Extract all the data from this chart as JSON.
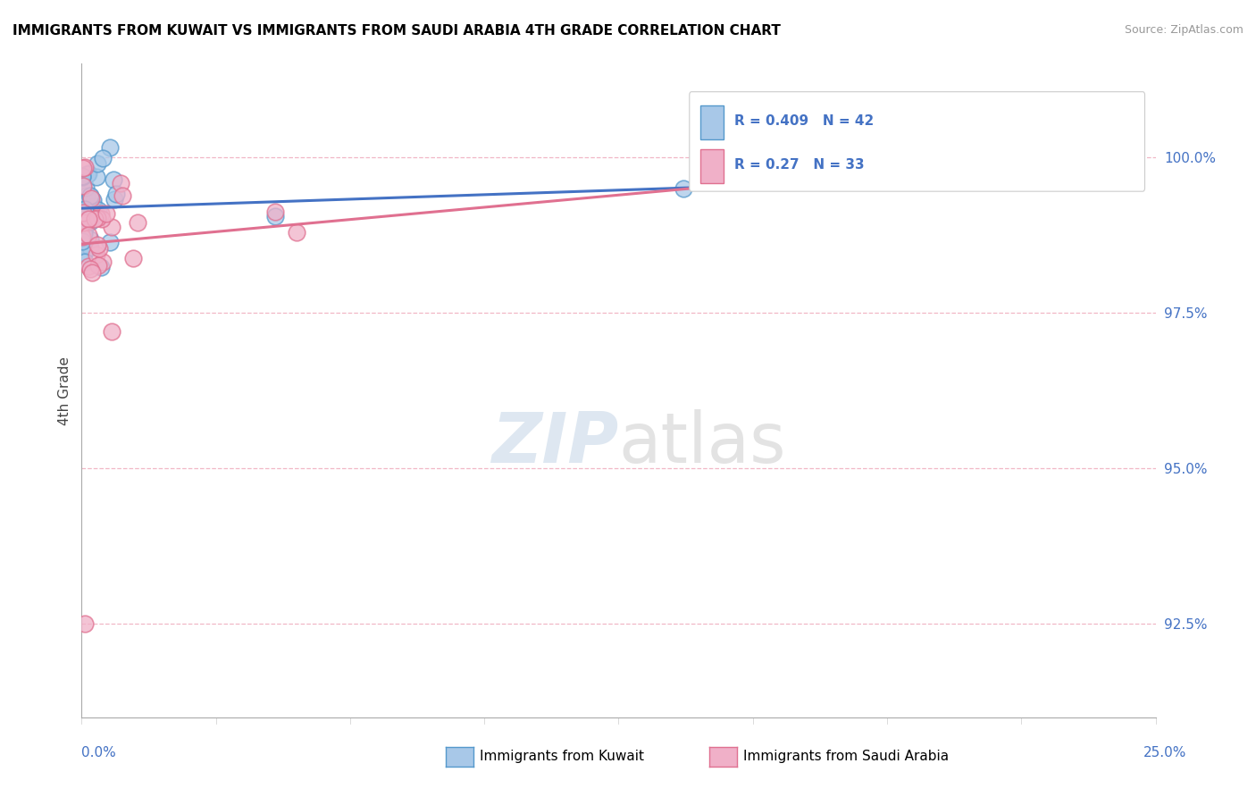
{
  "title": "IMMIGRANTS FROM KUWAIT VS IMMIGRANTS FROM SAUDI ARABIA 4TH GRADE CORRELATION CHART",
  "source": "Source: ZipAtlas.com",
  "ylabel": "4th Grade",
  "yticks": [
    92.5,
    95.0,
    97.5,
    100.0
  ],
  "ytick_labels": [
    "92.5%",
    "95.0%",
    "97.5%",
    "100.0%"
  ],
  "xlim": [
    0.0,
    25.0
  ],
  "ylim": [
    91.0,
    101.5
  ],
  "kuwait_R": 0.409,
  "kuwait_N": 42,
  "saudi_R": 0.27,
  "saudi_N": 33,
  "blue_scatter_color": "#a8c8e8",
  "blue_edge_color": "#5599cc",
  "pink_scatter_color": "#f0b0c8",
  "pink_edge_color": "#e07090",
  "blue_line_color": "#4472c4",
  "pink_line_color": "#e07090",
  "grid_color": "#f0b0c0",
  "background_color": "#ffffff",
  "title_fontsize": 11,
  "legend_text_color": "#4472c4",
  "right_tick_color": "#4472c4",
  "watermark_color": "#c8d8e8",
  "source_color": "#999999"
}
